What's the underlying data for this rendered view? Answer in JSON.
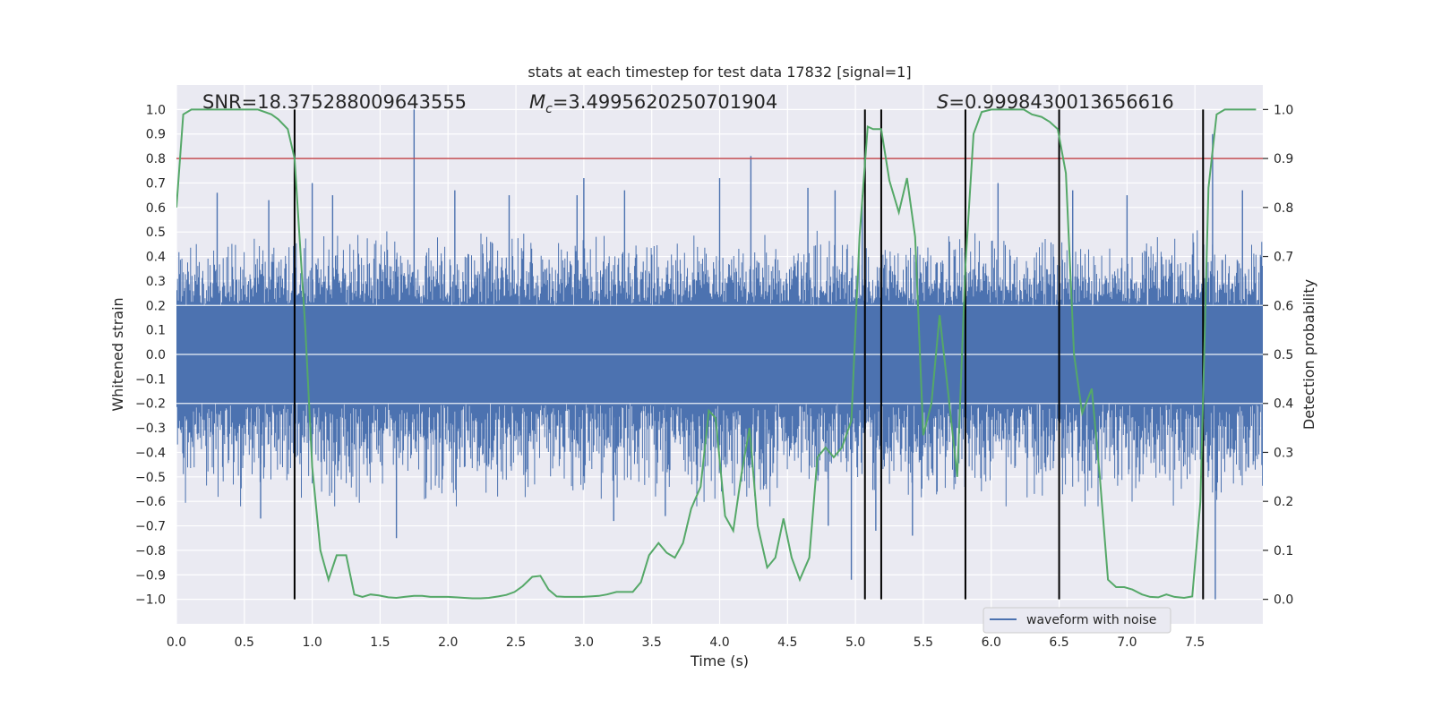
{
  "chart_data": {
    "type": "line",
    "title": "stats at each timestep for test data 17832 [signal=1]",
    "xlabel": "Time (s)",
    "ylabel": "Whitened strain",
    "ylabel_right": "Detection probability",
    "xlim": [
      0.0,
      8.0
    ],
    "ylim": [
      -1.1,
      1.1
    ],
    "ylim_right": [
      -0.05,
      1.05
    ],
    "x_ticks": [
      "0.0",
      "0.5",
      "1.0",
      "1.5",
      "2.0",
      "2.5",
      "3.0",
      "3.5",
      "4.0",
      "4.5",
      "5.0",
      "5.5",
      "6.0",
      "6.5",
      "7.0",
      "7.5"
    ],
    "y_ticks": [
      "1.0",
      "0.9",
      "0.8",
      "0.7",
      "0.6",
      "0.5",
      "0.4",
      "0.3",
      "0.2",
      "0.1",
      "0.0",
      "-0.1",
      "-0.2",
      "-0.3",
      "-0.4",
      "-0.5",
      "-0.6",
      "-0.7",
      "-0.8",
      "-0.9",
      "-1.0"
    ],
    "y_ticks_right": [
      "1.0",
      "0.9",
      "0.8",
      "0.7",
      "0.6",
      "0.5",
      "0.4",
      "0.3",
      "0.2",
      "0.1",
      "0.0"
    ],
    "grid": true,
    "legend_position": "lower-right",
    "colors": {
      "waveform": "#4c72b0",
      "probability": "#55a868",
      "threshold": "#c44e52",
      "events": "#000000",
      "background": "#eaeaf2"
    },
    "annotations": {
      "snr": "SNR=18.375288009643555",
      "mc_symbol": "M",
      "mc_sub": "c",
      "mc_value": "=3.4995620250701904",
      "s_symbol": "S",
      "s_value": "=0.9998430013656616"
    },
    "threshold_level": 0.8,
    "event_times": [
      0.87,
      5.07,
      5.19,
      5.81,
      6.5,
      7.56
    ],
    "series": [
      {
        "name": "waveform with noise",
        "kind": "noise-envelope",
        "band": [
          -0.2,
          0.2
        ],
        "typical_amplitude": [
          -0.45,
          0.45
        ],
        "spikes": [
          [
            0.3,
            0.66
          ],
          [
            0.68,
            0.63
          ],
          [
            1.0,
            0.7
          ],
          [
            1.15,
            0.65
          ],
          [
            1.75,
            1.0
          ],
          [
            2.05,
            0.67
          ],
          [
            2.45,
            0.65
          ],
          [
            2.95,
            0.65
          ],
          [
            3.0,
            0.72
          ],
          [
            3.3,
            0.67
          ],
          [
            4.0,
            0.72
          ],
          [
            4.23,
            0.81
          ],
          [
            4.65,
            0.68
          ],
          [
            4.85,
            0.67
          ],
          [
            5.05,
            0.65
          ],
          [
            6.05,
            0.7
          ],
          [
            6.6,
            0.67
          ],
          [
            7.0,
            0.65
          ],
          [
            7.63,
            0.9
          ],
          [
            7.85,
            0.67
          ],
          [
            0.62,
            -0.67
          ],
          [
            1.62,
            -0.75
          ],
          [
            3.22,
            -0.68
          ],
          [
            3.6,
            -0.66
          ],
          [
            4.8,
            -0.7
          ],
          [
            4.97,
            -0.92
          ],
          [
            5.15,
            -0.72
          ],
          [
            5.42,
            -0.74
          ],
          [
            7.65,
            -1.0
          ]
        ]
      },
      {
        "name": "",
        "kind": "probability",
        "x": [
          0.0,
          0.05,
          0.11,
          0.2,
          0.3,
          0.4,
          0.5,
          0.6,
          0.7,
          0.75,
          0.82,
          0.87,
          0.95,
          1.0,
          1.06,
          1.12,
          1.18,
          1.25,
          1.31,
          1.37,
          1.43,
          1.49,
          1.56,
          1.62,
          1.68,
          1.75,
          1.81,
          1.87,
          1.93,
          2.0,
          2.06,
          2.12,
          2.18,
          2.24,
          2.3,
          2.37,
          2.43,
          2.49,
          2.55,
          2.62,
          2.68,
          2.74,
          2.8,
          2.86,
          2.92,
          2.99,
          3.05,
          3.11,
          3.17,
          3.24,
          3.3,
          3.36,
          3.42,
          3.48,
          3.55,
          3.61,
          3.67,
          3.73,
          3.79,
          3.86,
          3.92,
          3.97,
          4.04,
          4.1,
          4.16,
          4.22,
          4.28,
          4.35,
          4.41,
          4.47,
          4.53,
          4.59,
          4.66,
          4.72,
          4.78,
          4.84,
          4.9,
          4.97,
          5.03,
          5.09,
          5.13,
          5.19,
          5.25,
          5.32,
          5.38,
          5.44,
          5.5,
          5.56,
          5.62,
          5.68,
          5.75,
          5.81,
          5.87,
          5.93,
          6.0,
          6.06,
          6.12,
          6.18,
          6.24,
          6.3,
          6.37,
          6.43,
          6.49,
          6.55,
          6.61,
          6.67,
          6.74,
          6.8,
          6.86,
          6.92,
          6.98,
          7.04,
          7.11,
          7.17,
          7.23,
          7.29,
          7.35,
          7.42,
          7.48,
          7.54,
          7.6,
          7.66,
          7.72,
          7.78,
          7.85,
          7.91,
          7.95
        ],
        "y": [
          0.8,
          0.99,
          1.0,
          1.0,
          1.0,
          1.0,
          1.0,
          1.0,
          0.99,
          0.98,
          0.96,
          0.9,
          0.55,
          0.27,
          0.1,
          0.04,
          0.09,
          0.09,
          0.01,
          0.005,
          0.01,
          0.008,
          0.004,
          0.003,
          0.005,
          0.007,
          0.007,
          0.005,
          0.005,
          0.005,
          0.004,
          0.003,
          0.002,
          0.002,
          0.003,
          0.006,
          0.009,
          0.015,
          0.027,
          0.046,
          0.048,
          0.02,
          0.006,
          0.005,
          0.005,
          0.005,
          0.006,
          0.007,
          0.01,
          0.015,
          0.015,
          0.015,
          0.035,
          0.09,
          0.115,
          0.095,
          0.085,
          0.115,
          0.185,
          0.23,
          0.385,
          0.37,
          0.17,
          0.14,
          0.255,
          0.35,
          0.15,
          0.065,
          0.085,
          0.165,
          0.085,
          0.04,
          0.085,
          0.29,
          0.31,
          0.29,
          0.31,
          0.365,
          0.74,
          0.965,
          0.96,
          0.96,
          0.855,
          0.79,
          0.86,
          0.74,
          0.335,
          0.4,
          0.58,
          0.43,
          0.25,
          0.68,
          0.95,
          0.995,
          1.0,
          1.0,
          1.0,
          1.0,
          1.0,
          0.99,
          0.985,
          0.975,
          0.96,
          0.87,
          0.5,
          0.38,
          0.43,
          0.25,
          0.04,
          0.025,
          0.025,
          0.02,
          0.01,
          0.005,
          0.004,
          0.01,
          0.005,
          0.003,
          0.006,
          0.2,
          0.84,
          0.99,
          1.0,
          1.0,
          1.0,
          1.0,
          1.0
        ]
      }
    ]
  }
}
